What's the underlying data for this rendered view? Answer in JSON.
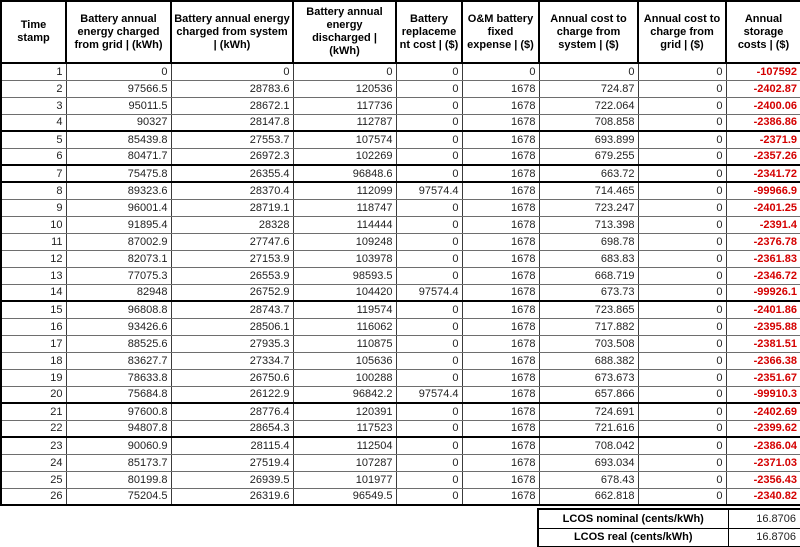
{
  "colors": {
    "negative_text": "#d40000",
    "grid_line": "#6e6e6e",
    "border": "#000000"
  },
  "table": {
    "columns": [
      "Time stamp",
      "Battery annual energy charged from grid | (kWh)",
      "Battery annual energy charged from system | (kWh)",
      "Battery annual energy discharged | (kWh)",
      "Battery replacement cost | ($)",
      "O&M battery fixed expense | ($)",
      "Annual cost to charge from system | ($)",
      "Annual cost to charge from grid | ($)",
      "Annual storage costs | ($)"
    ],
    "rows": [
      [
        "1",
        "0",
        "0",
        "0",
        "0",
        "0",
        "0",
        "0",
        "-107592"
      ],
      [
        "2",
        "97566.5",
        "28783.6",
        "120536",
        "0",
        "1678",
        "724.87",
        "0",
        "-2402.87"
      ],
      [
        "3",
        "95011.5",
        "28672.1",
        "117736",
        "0",
        "1678",
        "722.064",
        "0",
        "-2400.06"
      ],
      [
        "4",
        "90327",
        "28147.8",
        "112787",
        "0",
        "1678",
        "708.858",
        "0",
        "-2386.86"
      ],
      [
        "5",
        "85439.8",
        "27553.7",
        "107574",
        "0",
        "1678",
        "693.899",
        "0",
        "-2371.9"
      ],
      [
        "6",
        "80471.7",
        "26972.3",
        "102269",
        "0",
        "1678",
        "679.255",
        "0",
        "-2357.26"
      ],
      [
        "7",
        "75475.8",
        "26355.4",
        "96848.6",
        "0",
        "1678",
        "663.72",
        "0",
        "-2341.72"
      ],
      [
        "8",
        "89323.6",
        "28370.4",
        "112099",
        "97574.4",
        "1678",
        "714.465",
        "0",
        "-99966.9"
      ],
      [
        "9",
        "96001.4",
        "28719.1",
        "118747",
        "0",
        "1678",
        "723.247",
        "0",
        "-2401.25"
      ],
      [
        "10",
        "91895.4",
        "28328",
        "114444",
        "0",
        "1678",
        "713.398",
        "0",
        "-2391.4"
      ],
      [
        "11",
        "87002.9",
        "27747.6",
        "109248",
        "0",
        "1678",
        "698.78",
        "0",
        "-2376.78"
      ],
      [
        "12",
        "82073.1",
        "27153.9",
        "103978",
        "0",
        "1678",
        "683.83",
        "0",
        "-2361.83"
      ],
      [
        "13",
        "77075.3",
        "26553.9",
        "98593.5",
        "0",
        "1678",
        "668.719",
        "0",
        "-2346.72"
      ],
      [
        "14",
        "82948",
        "26752.9",
        "104420",
        "97574.4",
        "1678",
        "673.73",
        "0",
        "-99926.1"
      ],
      [
        "15",
        "96808.8",
        "28743.7",
        "119574",
        "0",
        "1678",
        "723.865",
        "0",
        "-2401.86"
      ],
      [
        "16",
        "93426.6",
        "28506.1",
        "116062",
        "0",
        "1678",
        "717.882",
        "0",
        "-2395.88"
      ],
      [
        "17",
        "88525.6",
        "27935.3",
        "110875",
        "0",
        "1678",
        "703.508",
        "0",
        "-2381.51"
      ],
      [
        "18",
        "83627.7",
        "27334.7",
        "105636",
        "0",
        "1678",
        "688.382",
        "0",
        "-2366.38"
      ],
      [
        "19",
        "78633.8",
        "26750.6",
        "100288",
        "0",
        "1678",
        "673.673",
        "0",
        "-2351.67"
      ],
      [
        "20",
        "75684.8",
        "26122.9",
        "96842.2",
        "97574.4",
        "1678",
        "657.866",
        "0",
        "-99910.3"
      ],
      [
        "21",
        "97600.8",
        "28776.4",
        "120391",
        "0",
        "1678",
        "724.691",
        "0",
        "-2402.69"
      ],
      [
        "22",
        "94807.8",
        "28654.3",
        "117523",
        "0",
        "1678",
        "721.616",
        "0",
        "-2399.62"
      ],
      [
        "23",
        "90060.9",
        "28115.4",
        "112504",
        "0",
        "1678",
        "708.042",
        "0",
        "-2386.04"
      ],
      [
        "24",
        "85173.7",
        "27519.4",
        "107287",
        "0",
        "1678",
        "693.034",
        "0",
        "-2371.03"
      ],
      [
        "25",
        "80199.8",
        "26939.5",
        "101977",
        "0",
        "1678",
        "678.43",
        "0",
        "-2356.43"
      ],
      [
        "26",
        "75204.5",
        "26319.6",
        "96549.5",
        "0",
        "1678",
        "662.818",
        "0",
        "-2340.82"
      ]
    ]
  },
  "summary": {
    "rows": [
      {
        "label": "LCOS nominal (cents/kWh)",
        "value": "16.8706"
      },
      {
        "label": "LCOS real (cents/kWh)",
        "value": "16.8706"
      }
    ]
  }
}
